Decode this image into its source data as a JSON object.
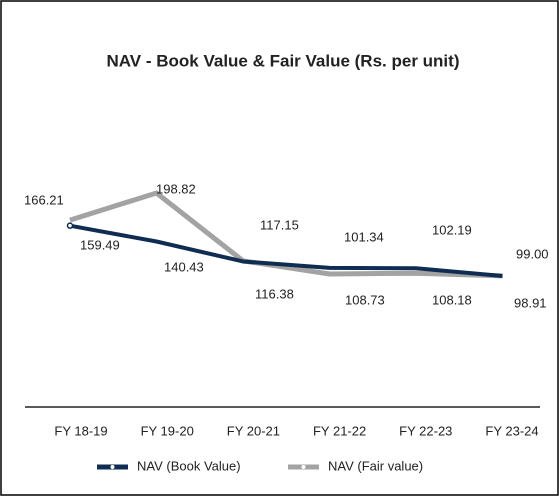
{
  "chart_data": {
    "type": "line",
    "title": "NAV - Book Value & Fair Value (Rs. per unit)",
    "categories": [
      "FY 18-19",
      "FY 19-20",
      "FY 20-21",
      "FY 21-22",
      "FY 22-23",
      "FY 23-24"
    ],
    "series": [
      {
        "name": "NAV (Book Value)",
        "color": "#0f2d52",
        "values": [
          159.49,
          140.43,
          116.38,
          108.73,
          108.18,
          98.91
        ]
      },
      {
        "name": "NAV (Fair value)",
        "color": "#a3a3a3",
        "values": [
          166.21,
          198.82,
          117.15,
          101.34,
          102.19,
          99
        ],
        "value_labels": [
          "166.21",
          "198.82",
          "117.15",
          "101.34",
          "102.19",
          "99.00"
        ]
      }
    ]
  }
}
